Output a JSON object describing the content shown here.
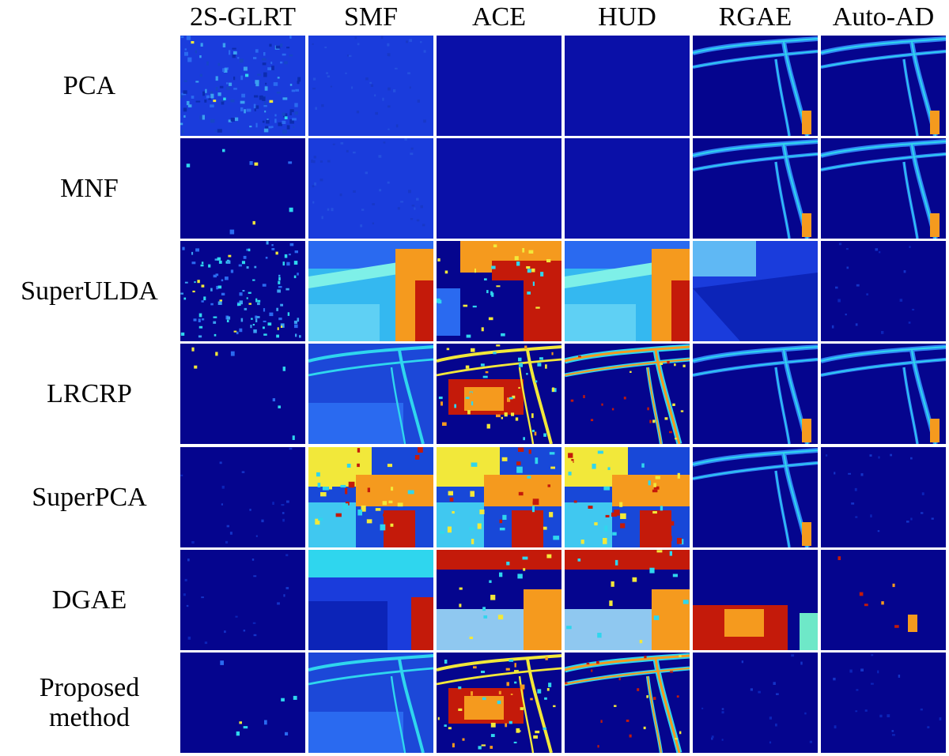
{
  "columns": [
    "2S-GLRT",
    "SMF",
    "ACE",
    "HUD",
    "RGAE",
    "Auto-AD"
  ],
  "rows": [
    "PCA",
    "MNF",
    "SuperULDA",
    "LRCRP",
    "SuperPCA",
    "DGAE",
    "Proposed\nmethod"
  ],
  "colors": {
    "background_blue": "#05058e",
    "mid_blue": "#1a3cdc",
    "cyan": "#2fd6ee",
    "yellow": "#f2e83a",
    "orange": "#f59a1e",
    "red": "#c41a0a"
  },
  "cells": [
    [
      "noise-mid",
      "uniform-mid",
      "uniform-dark",
      "uniform-dark",
      "road-lines",
      "road-lines"
    ],
    [
      "sparse-dots",
      "uniform-mid",
      "uniform-dark",
      "uniform-dark",
      "road-lines",
      "road-lines"
    ],
    [
      "dense-dots",
      "smooth-warm",
      "hot-block",
      "smooth-warm",
      "smooth-blue",
      "faint-dark"
    ],
    [
      "sparse-dots",
      "road-mid",
      "hot-texture",
      "road-hot",
      "road-lines",
      "road-lines"
    ],
    [
      "faint-dark",
      "patchy-hot",
      "patchy-hot",
      "patchy-hot",
      "road-lines",
      "faint-dark"
    ],
    [
      "faint-dark",
      "segments-cool",
      "segments-warm",
      "segments-warm",
      "segments-red",
      "spot-orange"
    ],
    [
      "sparse-dots",
      "road-mid",
      "hot-texture",
      "road-hot",
      "faint-dark",
      "faint-dark"
    ]
  ]
}
